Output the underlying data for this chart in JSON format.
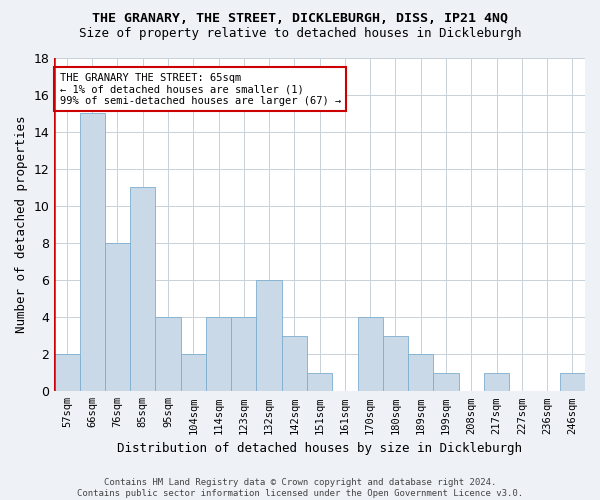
{
  "title": "THE GRANARY, THE STREET, DICKLEBURGH, DISS, IP21 4NQ",
  "subtitle": "Size of property relative to detached houses in Dickleburgh",
  "xlabel": "Distribution of detached houses by size in Dickleburgh",
  "ylabel": "Number of detached properties",
  "categories": [
    "57sqm",
    "66sqm",
    "76sqm",
    "85sqm",
    "95sqm",
    "104sqm",
    "114sqm",
    "123sqm",
    "132sqm",
    "142sqm",
    "151sqm",
    "161sqm",
    "170sqm",
    "180sqm",
    "189sqm",
    "199sqm",
    "208sqm",
    "217sqm",
    "227sqm",
    "236sqm",
    "246sqm"
  ],
  "values": [
    2,
    15,
    8,
    11,
    4,
    2,
    4,
    4,
    6,
    3,
    1,
    0,
    4,
    3,
    2,
    1,
    0,
    1,
    0,
    0,
    1
  ],
  "bar_color": "#c9d9e8",
  "bar_edge_color": "#7daed0",
  "highlight_line_color": "#cc0000",
  "ylim": [
    0,
    18
  ],
  "yticks": [
    0,
    2,
    4,
    6,
    8,
    10,
    12,
    14,
    16,
    18
  ],
  "annotation_text": "THE GRANARY THE STREET: 65sqm\n← 1% of detached houses are smaller (1)\n99% of semi-detached houses are larger (67) →",
  "annotation_box_color": "#ffffff",
  "annotation_box_edge_color": "#cc0000",
  "footer_text": "Contains HM Land Registry data © Crown copyright and database right 2024.\nContains public sector information licensed under the Open Government Licence v3.0.",
  "bg_color": "#eef2f7",
  "plot_bg_color": "#ffffff",
  "grid_color": "#c8d0d8",
  "title_fontsize": 9.5,
  "subtitle_fontsize": 9,
  "tick_fontsize": 7.5,
  "ylabel_fontsize": 9,
  "xlabel_fontsize": 9,
  "footer_fontsize": 6.5
}
